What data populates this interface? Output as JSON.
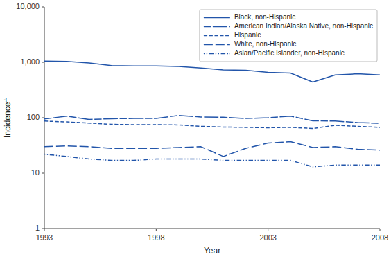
{
  "chart_data": {
    "type": "line",
    "xlabel": "Year",
    "ylabel": "Incidence†",
    "x": [
      1993,
      1994,
      1995,
      1996,
      1997,
      1998,
      1999,
      2000,
      2001,
      2002,
      2003,
      2004,
      2005,
      2006,
      2007,
      2008
    ],
    "series": [
      {
        "name": "Black, non-Hispanic",
        "color": "#2255aa",
        "line_style": "solid",
        "values": [
          1050,
          1040,
          970,
          870,
          860,
          860,
          840,
          790,
          730,
          720,
          660,
          640,
          440,
          590,
          620,
          590
        ]
      },
      {
        "name": "American Indian/Alaska Native, non-Hispanic",
        "color": "#2255aa",
        "line_style": "dash-longdash",
        "values": [
          95,
          107,
          93,
          96,
          97,
          97,
          110,
          103,
          102,
          97,
          100,
          107,
          88,
          87,
          82,
          79
        ]
      },
      {
        "name": "Hispanic",
        "color": "#2255aa",
        "line_style": "dashed",
        "values": [
          87,
          84,
          80,
          76,
          75,
          75,
          74,
          70,
          68,
          67,
          66,
          67,
          64,
          73,
          70,
          67
        ]
      },
      {
        "name": "White, non-Hispanic",
        "color": "#2255aa",
        "line_style": "longdash",
        "values": [
          30,
          31,
          30,
          28,
          28,
          28,
          29,
          30,
          20,
          28,
          35,
          37,
          29,
          30,
          27,
          26
        ]
      },
      {
        "name": "Asian/Pacific Islander, non-Hispanic",
        "color": "#2255aa",
        "line_style": "dotdotdash",
        "values": [
          22,
          20,
          18,
          17,
          17,
          18,
          18,
          18,
          17,
          17,
          17,
          17,
          13,
          14,
          14,
          14
        ]
      }
    ],
    "log": "y",
    "xlim": [
      1993,
      2008
    ],
    "xticks": [
      1993,
      1998,
      2003,
      2008
    ],
    "ylim": [
      1,
      10000
    ],
    "yticks": [
      1,
      10,
      100,
      {
        "value": 1000,
        "label": "1,000"
      },
      {
        "value": 10000,
        "label": "10,000"
      }
    ],
    "legend": "upper-right"
  }
}
